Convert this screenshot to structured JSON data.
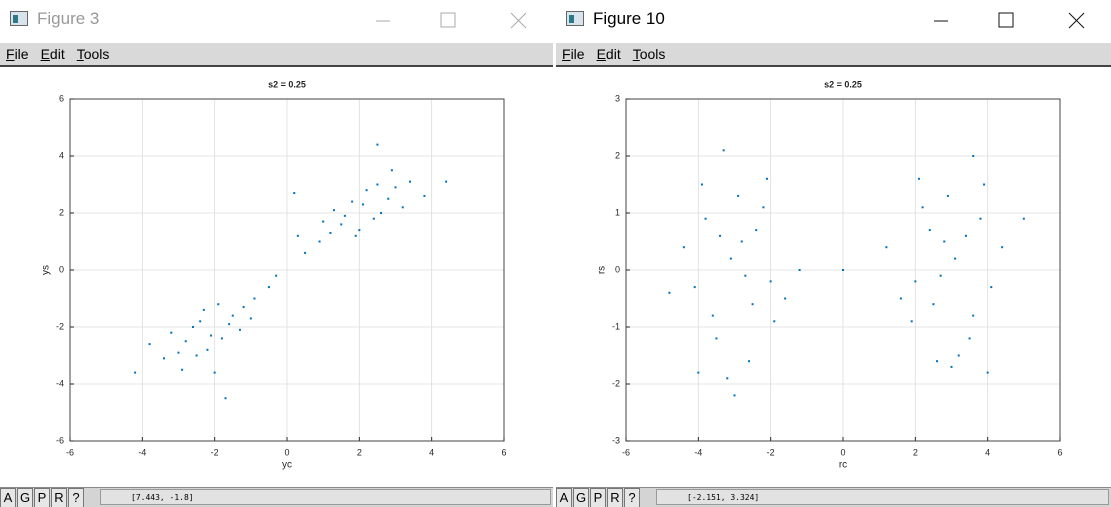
{
  "windows": [
    {
      "title": "Figure 3",
      "active": false,
      "menu": [
        "File",
        "Edit",
        "Tools"
      ],
      "status_buttons": [
        "A",
        "G",
        "P",
        "R",
        "?"
      ],
      "coordinates": "[7.443, -1.8]",
      "chart_data": {
        "type": "scatter",
        "title": "s2 = 0.25",
        "x_label": "yc",
        "y_label": "ys",
        "color": "#0072bd",
        "grid": true,
        "xlim": [
          -6,
          6
        ],
        "xticks": [
          -6,
          -4,
          -2,
          0,
          2,
          4,
          6
        ],
        "ylim": [
          -6,
          6
        ],
        "yticks": [
          -6,
          -4,
          -2,
          0,
          2,
          4,
          6
        ],
        "x": [
          -2.1,
          -1.5,
          -2.8,
          -1.2,
          -3.0,
          -2.4,
          -1.8,
          -0.9,
          -3.4,
          -2.6,
          -1.6,
          -2.2,
          -0.5,
          -3.8,
          -1.0,
          -2.9,
          -1.9,
          -2.5,
          -1.3,
          -3.2,
          -0.3,
          -2.0,
          -1.7,
          -4.2,
          -2.3,
          2.1,
          1.5,
          2.8,
          1.2,
          3.0,
          2.4,
          1.8,
          0.9,
          3.4,
          2.6,
          1.6,
          2.2,
          0.5,
          3.8,
          1.0,
          2.9,
          1.9,
          2.5,
          1.3,
          3.2,
          0.3,
          2.5,
          4.4,
          0.2,
          2.0
        ],
        "y": [
          -2.3,
          -1.6,
          -2.5,
          -1.3,
          -2.9,
          -1.8,
          -2.4,
          -1.0,
          -3.1,
          -2.0,
          -1.9,
          -2.8,
          -0.6,
          -2.6,
          -1.7,
          -3.5,
          -1.2,
          -3.0,
          -2.1,
          -2.2,
          -0.2,
          -3.6,
          -4.5,
          -3.6,
          -1.4,
          2.3,
          1.6,
          2.5,
          1.3,
          2.9,
          1.8,
          2.4,
          1.0,
          3.1,
          2.0,
          1.9,
          2.8,
          0.6,
          2.6,
          1.7,
          3.5,
          1.2,
          3.0,
          2.1,
          2.2,
          1.2,
          4.4,
          3.1,
          2.7,
          1.4
        ]
      }
    },
    {
      "title": "Figure 10",
      "active": true,
      "menu": [
        "File",
        "Edit",
        "Tools"
      ],
      "status_buttons": [
        "A",
        "G",
        "P",
        "R",
        "?"
      ],
      "coordinates": "[-2.151, 3.324]",
      "chart_data": {
        "type": "scatter",
        "title": "s2 = 0.25",
        "x_label": "rc",
        "y_label": "rs",
        "color": "#0072bd",
        "grid": true,
        "xlim": [
          -6,
          6
        ],
        "xticks": [
          -6,
          -4,
          -2,
          0,
          2,
          4,
          6
        ],
        "ylim": [
          -3,
          3
        ],
        "yticks": [
          -3,
          -2,
          -1,
          0,
          1,
          2,
          3
        ],
        "x": [
          -3.1,
          -2.5,
          -3.8,
          -2.2,
          -3.5,
          -2.8,
          -4.1,
          -2.0,
          -3.3,
          -2.6,
          -3.9,
          -2.4,
          -1.6,
          -4.4,
          -3.0,
          -2.1,
          -3.6,
          -4.8,
          -1.2,
          -3.2,
          -2.9,
          -4.0,
          -2.7,
          -3.4,
          -1.9,
          0.0,
          3.1,
          2.5,
          3.8,
          2.2,
          3.5,
          2.8,
          4.1,
          2.0,
          3.6,
          2.6,
          3.9,
          2.4,
          1.6,
          4.4,
          3.0,
          2.1,
          3.6,
          5.0,
          1.2,
          3.2,
          2.9,
          4.0,
          2.7,
          3.4,
          1.9
        ],
        "y": [
          0.2,
          -0.6,
          0.9,
          1.1,
          -1.2,
          0.5,
          -0.3,
          -0.2,
          2.1,
          -1.6,
          1.5,
          0.7,
          -0.5,
          0.4,
          -2.2,
          1.6,
          -0.8,
          -0.4,
          0.0,
          -1.9,
          1.3,
          -1.8,
          -0.1,
          0.6,
          -0.9,
          0.0,
          0.2,
          -0.6,
          0.9,
          1.1,
          -1.2,
          0.5,
          -0.3,
          -0.2,
          2.0,
          -1.6,
          1.5,
          0.7,
          -0.5,
          0.4,
          -1.7,
          1.6,
          -0.8,
          0.9,
          0.4,
          -1.5,
          1.3,
          -1.8,
          -0.1,
          0.6,
          -0.9
        ]
      }
    }
  ]
}
